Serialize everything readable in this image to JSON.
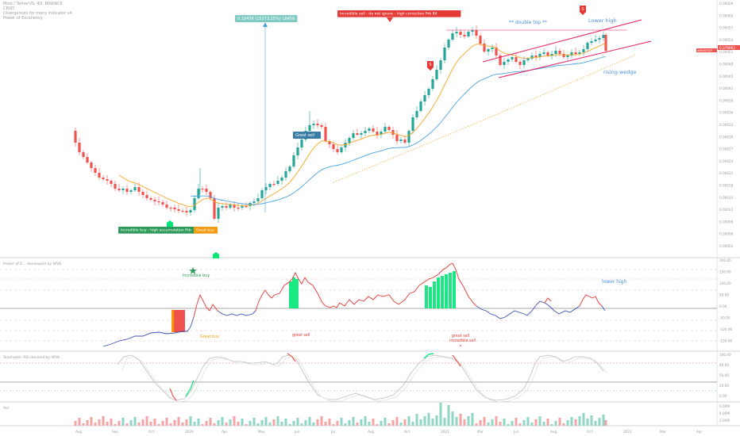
{
  "header": {
    "symbol_line": "Molo / TetherUS, 4D, BINANCE",
    "line2": "CRVO",
    "line3": "Divergences for many indicator v4",
    "line4": "Power of Excellency"
  },
  "colors": {
    "up": "#26a69a",
    "down": "#ef5350",
    "ema_fast": "#f5a623",
    "ema_slow": "#4da3e0",
    "wedge": "#e91e63",
    "pos_line": "#e53935",
    "neg_line": "#3f51b5",
    "bright_green": "#00e676",
    "label_green": "#2e9b5b",
    "label_orange": "#f39c12",
    "label_red": "#e53935",
    "label_teal": "#7fcac3",
    "label_blue": "#3a7ca5"
  },
  "price_scale": [
    "0.00000",
    "0.00060",
    "0.00057",
    "0.00054",
    "0.00051",
    "0.00048",
    "0.00045",
    "0.00042",
    "0.00039",
    "0.00036",
    "0.00033",
    "0.00030",
    "0.00027",
    "0.00024",
    "0.00021",
    "0.00018",
    "0.00015",
    "0.00012",
    "0.00009",
    "0.00006",
    "0.00003"
  ],
  "current_price": "0.079982",
  "price_tag": "ANKRUSDT",
  "date_labels": [
    "Aug",
    "Sep",
    "Oct",
    "2020",
    "Apr",
    "May",
    "Jun",
    "Jul",
    "Aug",
    "Oct",
    "2021",
    "Mar",
    "Jun",
    "Aug",
    "Oct",
    "2022",
    "Mar",
    "Apr"
  ],
  "annotations": {
    "measure": "0.18456 (15273.15%) 18456",
    "incredible_sell": "Incredible sell - do not ignore - high correction Prb 84",
    "double_top": "** double top **",
    "lower_high": "Lower high",
    "rising_wedge": "rising wedge",
    "great_sell": "Great sell",
    "incredible_buy": "Incredible buy - high accumulation Prb",
    "great_buy": "Great buy",
    "marker_s": "S"
  },
  "panels": {
    "poe_title": "Power of E... developed by WVK",
    "poe_incredible_buy": "Incredible buy",
    "poe_great_buy": "Great buy",
    "poe_great_sell": "great sell",
    "poe_great_sell2": "great sell",
    "poe_incredible_sell": "incredible sell",
    "poe_lower_high": "lower high",
    "poe_scale": [
      "200.00",
      "150.00",
      "100.00",
      "50.00",
      "0.00",
      "-50.00",
      "-100.00",
      "-150.00"
    ],
    "stoch_title": "Stochastic RSI devised by WVK",
    "stoch_scale": [
      "100.00",
      "80.00",
      "50.00",
      "20.00",
      "0.00"
    ],
    "vol_title": "Vol",
    "vol_scale": [
      "6.00M",
      "4.00M",
      "2.00M"
    ]
  },
  "chart_data": {
    "type": "candlestick",
    "price_ylim": [
      0,
      0.6
    ],
    "candles": [],
    "note_series": "qualitative recreation"
  }
}
